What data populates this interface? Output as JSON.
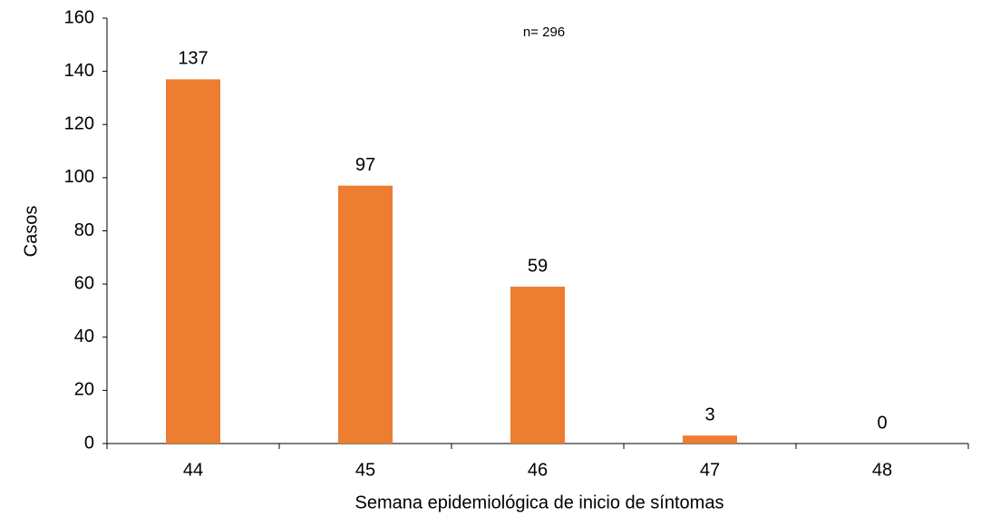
{
  "chart_data": {
    "type": "bar",
    "annotation": "n= 296",
    "x_label": "Semana epidemiológica de inicio de síntomas",
    "y_label": "Casos",
    "categories": [
      "44",
      "45",
      "46",
      "47",
      "48"
    ],
    "values": [
      137,
      97,
      59,
      3,
      0
    ],
    "color": "#ed7d31",
    "ylim": [
      0,
      160
    ],
    "yticks": [
      0,
      20,
      40,
      60,
      80,
      100,
      120,
      140,
      160
    ],
    "grid": false
  }
}
